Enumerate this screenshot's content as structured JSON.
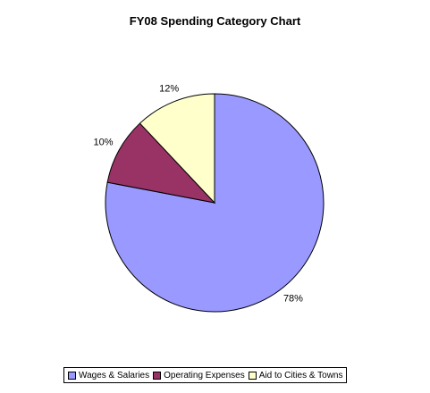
{
  "chart_data": {
    "type": "pie",
    "title": "FY08 Spending Category Chart",
    "slices": [
      {
        "name": "Wages & Salaries",
        "value": 78,
        "label": "78%",
        "color": "#9999ff"
      },
      {
        "name": "Operating Expenses",
        "value": 10,
        "label": "10%",
        "color": "#993366"
      },
      {
        "name": "Aid to Cities & Towns",
        "value": 12,
        "label": "12%",
        "color": "#ffffcc"
      }
    ],
    "start": "12 o'clock",
    "direction": "clockwise",
    "legend_position": "bottom"
  }
}
